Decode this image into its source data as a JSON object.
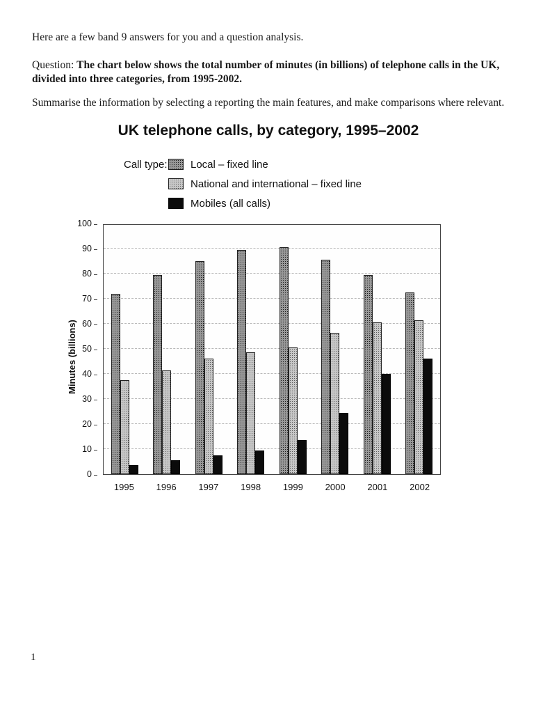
{
  "page": {
    "intro": "Here are a few band 9 answers for you and a question analysis.",
    "question_label": "Question: ",
    "question_bold": "The chart below shows the total number of minutes (in billions) of telephone calls in the UK, divided into three categories, from 1995-2002.",
    "summarise": "Summarise the information by selecting a reporting the main features, and make comparisons where relevant.",
    "page_number": "1"
  },
  "chart_data": {
    "type": "bar",
    "title": "UK telephone calls, by category, 1995–2002",
    "legend_label": "Call type:",
    "categories": [
      "1995",
      "1996",
      "1997",
      "1998",
      "1999",
      "2000",
      "2001",
      "2002"
    ],
    "series": [
      {
        "name": "Local – fixed line",
        "style": "dark-stipple",
        "values": [
          72,
          79.5,
          85,
          89.5,
          90.5,
          85.5,
          79.5,
          72.5
        ]
      },
      {
        "name": "National and international – fixed line",
        "style": "light-stipple",
        "values": [
          37.5,
          41.5,
          46,
          48.5,
          50.5,
          56.5,
          60.5,
          61.5
        ]
      },
      {
        "name": "Mobiles (all calls)",
        "style": "solid-black",
        "values": [
          3.5,
          5.5,
          7.5,
          9.5,
          13.5,
          24.5,
          40,
          46
        ]
      }
    ],
    "xlabel": "",
    "ylabel": "Minutes (billions)",
    "ylim": [
      0,
      100
    ],
    "ytick_step": 10,
    "grid": "horizontal-dashed",
    "legend_position": "top-left-above-plot",
    "colors": {
      "local": "#979797",
      "national": "#c6c6c6",
      "mobiles": "#0b0b0b"
    }
  }
}
